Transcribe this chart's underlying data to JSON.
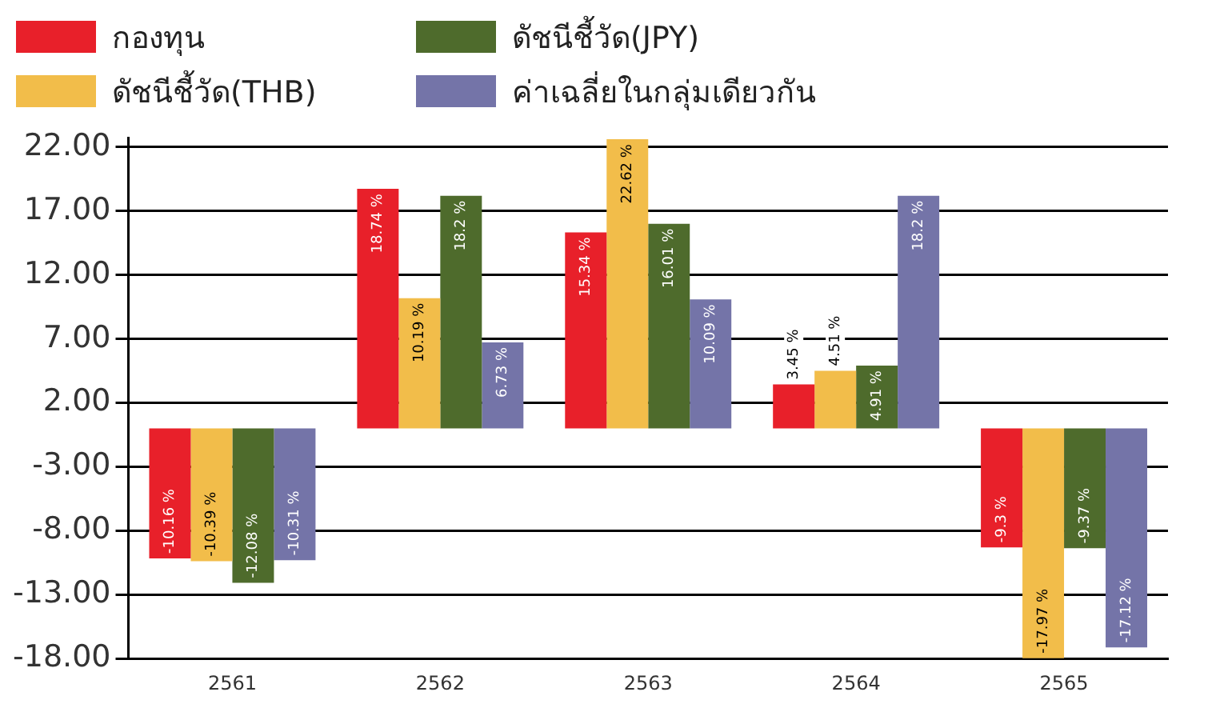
{
  "chart_data": {
    "type": "bar",
    "categories": [
      "2561",
      "2562",
      "2563",
      "2564",
      "2565"
    ],
    "series": [
      {
        "name": "กองทุน",
        "color": "#e8202a",
        "values": [
          -10.16,
          18.74,
          15.34,
          3.45,
          -9.3
        ],
        "value_labels": [
          "-10.16 %",
          "18.74 %",
          "15.34 %",
          "3.45 %",
          "-9.3 %"
        ]
      },
      {
        "name": "ดัชนีชี้วัด(THB)",
        "color": "#f2bd4a",
        "values": [
          -10.39,
          10.19,
          22.62,
          4.51,
          -17.97
        ],
        "value_labels": [
          "-10.39 %",
          "10.19 %",
          "22.62 %",
          "4.51 %",
          "-17.97 %"
        ]
      },
      {
        "name": "ดัชนีชี้วัด(JPY)",
        "color": "#4e6b2c",
        "values": [
          -12.08,
          18.2,
          16.01,
          4.91,
          -9.37
        ],
        "value_labels": [
          "-12.08 %",
          "18.2 %",
          "16.01 %",
          "4.91 %",
          "-9.37 %"
        ]
      },
      {
        "name": "ค่าเฉลี่ยในกลุ่มเดียวกัน",
        "color": "#7474a8",
        "values": [
          -10.31,
          6.73,
          10.09,
          18.2,
          -17.12
        ],
        "value_labels": [
          "-10.31 %",
          "6.73 %",
          "10.09 %",
          "18.2 %",
          "-17.12 %"
        ]
      }
    ],
    "ylim": [
      -18,
      22.7
    ],
    "yticks": [
      {
        "value": 22,
        "label": "22.00"
      },
      {
        "value": 17,
        "label": "17.00"
      },
      {
        "value": 12,
        "label": "12.00"
      },
      {
        "value": 7,
        "label": "7.00"
      },
      {
        "value": 2,
        "label": "2.00"
      },
      {
        "value": -3,
        "label": "-3.00"
      },
      {
        "value": -8,
        "label": "-8.00"
      },
      {
        "value": -13,
        "label": "-13.00"
      },
      {
        "value": -18,
        "label": "-18.00"
      }
    ],
    "grid": "y",
    "legend": "top left"
  }
}
